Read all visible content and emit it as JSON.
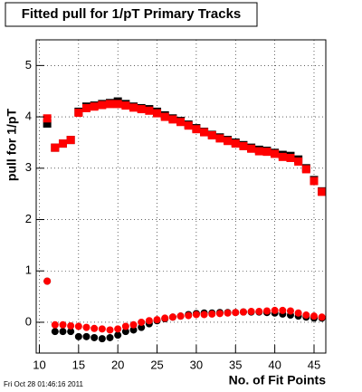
{
  "chart_data": {
    "type": "scatter",
    "title": "Fitted pull for 1/pT Primary Tracks",
    "x_label": "No. of Fit Points",
    "y_label": "pull for 1/pT",
    "timestamp": "Fri Oct 28 01:46:16 2011",
    "xlim": [
      9.6,
      46.5
    ],
    "ylim": [
      -0.6,
      5.5
    ],
    "xticks": [
      10,
      15,
      20,
      25,
      30,
      35,
      40,
      45
    ],
    "yticks": [
      0,
      1,
      2,
      3,
      4,
      5
    ],
    "grid": true,
    "x": [
      11,
      12,
      13,
      14,
      15,
      16,
      17,
      18,
      19,
      20,
      21,
      22,
      23,
      24,
      25,
      26,
      27,
      28,
      29,
      30,
      31,
      32,
      33,
      34,
      35,
      36,
      37,
      38,
      39,
      40,
      41,
      42,
      43,
      44,
      45,
      46
    ],
    "series": [
      {
        "color": "#000000",
        "marker": "square",
        "values": [
          3.87,
          3.4,
          3.48,
          3.55,
          4.1,
          4.2,
          4.22,
          4.25,
          4.27,
          4.3,
          4.25,
          4.2,
          4.17,
          4.15,
          4.1,
          4.03,
          3.97,
          3.92,
          3.85,
          3.78,
          3.71,
          3.65,
          3.6,
          3.55,
          3.5,
          3.45,
          3.4,
          3.36,
          3.34,
          3.3,
          3.26,
          3.24,
          3.17,
          3.0,
          2.77,
          2.55
        ]
      },
      {
        "color": "#000000",
        "marker": "circle",
        "values": [
          0.8,
          -0.18,
          -0.18,
          -0.18,
          -0.28,
          -0.28,
          -0.3,
          -0.32,
          -0.3,
          -0.25,
          -0.18,
          -0.15,
          -0.1,
          -0.03,
          0.03,
          0.07,
          0.1,
          0.12,
          0.15,
          0.17,
          0.18,
          0.18,
          0.19,
          0.19,
          0.19,
          0.2,
          0.2,
          0.2,
          0.19,
          0.18,
          0.16,
          0.14,
          0.12,
          0.1,
          0.08,
          0.08
        ]
      },
      {
        "color": "#ff0000",
        "marker": "square",
        "values": [
          3.97,
          3.4,
          3.48,
          3.55,
          4.08,
          4.17,
          4.2,
          4.23,
          4.25,
          4.25,
          4.22,
          4.18,
          4.15,
          4.12,
          4.07,
          4.0,
          3.95,
          3.9,
          3.83,
          3.76,
          3.7,
          3.64,
          3.58,
          3.53,
          3.48,
          3.43,
          3.38,
          3.33,
          3.32,
          3.28,
          3.22,
          3.2,
          3.13,
          2.98,
          2.75,
          2.54
        ]
      },
      {
        "color": "#ff0000",
        "marker": "circle",
        "values": [
          0.8,
          -0.05,
          -0.05,
          -0.07,
          -0.08,
          -0.1,
          -0.12,
          -0.13,
          -0.15,
          -0.13,
          -0.08,
          -0.05,
          0.0,
          0.03,
          0.05,
          0.08,
          0.1,
          0.12,
          0.13,
          0.15,
          0.15,
          0.16,
          0.17,
          0.18,
          0.19,
          0.2,
          0.21,
          0.21,
          0.22,
          0.23,
          0.23,
          0.22,
          0.18,
          0.14,
          0.12,
          0.1
        ]
      }
    ]
  }
}
